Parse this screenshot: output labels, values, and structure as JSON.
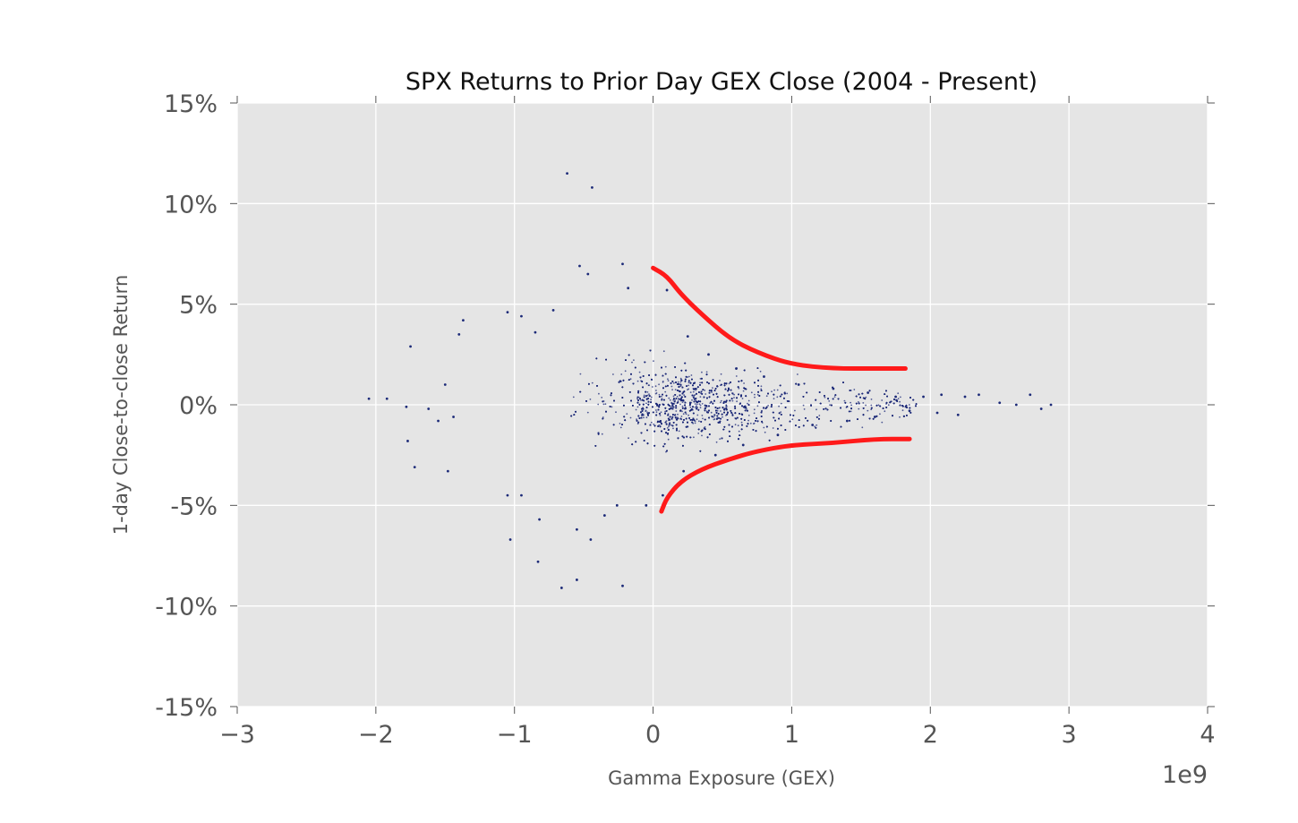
{
  "chart_data": {
    "type": "scatter",
    "title": "SPX Returns to Prior Day GEX Close (2004 - Present)",
    "xlabel": "Gamma Exposure (GEX)",
    "ylabel": "1-day Close-to-close Return",
    "x_offset_label": "1e9",
    "xlim": [
      -3,
      4
    ],
    "ylim": [
      -0.15,
      0.15
    ],
    "x_ticks": [
      -3,
      -2,
      -1,
      0,
      1,
      2,
      3,
      4
    ],
    "x_tick_labels": [
      "−3",
      "−2",
      "−1",
      "0",
      "1",
      "2",
      "3",
      "4"
    ],
    "y_ticks": [
      0.15,
      0.1,
      0.05,
      0,
      -0.05,
      -0.1,
      -0.15
    ],
    "y_tick_labels": [
      "15%",
      "10%",
      "5%",
      "0%",
      "-5%",
      "-10%",
      "-15%"
    ],
    "grid": true,
    "colors": {
      "plot_bg": "#e5e5e5",
      "grid": "#ffffff",
      "points": "#1c2a78",
      "annotation": "#ff1a1a"
    },
    "series": [
      {
        "points": [
          [
            -0.62,
            0.115
          ],
          [
            -0.44,
            0.108
          ],
          [
            -0.53,
            0.069
          ],
          [
            -0.22,
            0.07
          ],
          [
            -0.47,
            0.065
          ],
          [
            -0.18,
            0.058
          ],
          [
            0.1,
            0.057
          ],
          [
            -0.72,
            0.047
          ],
          [
            -0.95,
            0.044
          ],
          [
            -1.05,
            0.046
          ],
          [
            -1.37,
            0.042
          ],
          [
            -0.85,
            0.036
          ],
          [
            0.25,
            0.034
          ],
          [
            -1.4,
            0.035
          ],
          [
            -1.75,
            0.029
          ],
          [
            -2.05,
            0.003
          ],
          [
            -1.92,
            0.003
          ],
          [
            -1.78,
            -0.001
          ],
          [
            -1.62,
            -0.002
          ],
          [
            -1.5,
            0.01
          ],
          [
            -1.44,
            -0.006
          ],
          [
            -1.55,
            -0.008
          ],
          [
            -1.77,
            -0.018
          ],
          [
            -1.72,
            -0.031
          ],
          [
            -1.48,
            -0.033
          ],
          [
            -1.05,
            -0.045
          ],
          [
            -0.95,
            -0.045
          ],
          [
            -0.82,
            -0.057
          ],
          [
            -1.03,
            -0.067
          ],
          [
            -0.83,
            -0.078
          ],
          [
            -0.55,
            -0.087
          ],
          [
            -0.66,
            -0.091
          ],
          [
            -0.22,
            -0.09
          ],
          [
            -0.45,
            -0.067
          ],
          [
            -0.55,
            -0.062
          ],
          [
            -0.35,
            -0.055
          ],
          [
            -0.26,
            -0.05
          ],
          [
            -0.05,
            -0.05
          ],
          [
            0.07,
            -0.045
          ],
          [
            0.22,
            -0.033
          ],
          [
            0.4,
            0.025
          ],
          [
            0.6,
            0.018
          ],
          [
            0.8,
            0.014
          ],
          [
            1.05,
            0.01
          ],
          [
            1.3,
            0.008
          ],
          [
            1.55,
            0.006
          ],
          [
            1.75,
            0.004
          ],
          [
            1.95,
            0.004
          ],
          [
            2.08,
            0.005
          ],
          [
            2.25,
            0.004
          ],
          [
            2.35,
            0.005
          ],
          [
            2.5,
            0.001
          ],
          [
            2.62,
            0.0
          ],
          [
            2.72,
            0.005
          ],
          [
            2.8,
            -0.002
          ],
          [
            2.87,
            0.0
          ],
          [
            2.2,
            -0.005
          ],
          [
            2.05,
            -0.004
          ],
          [
            1.85,
            -0.003
          ],
          [
            1.6,
            -0.006
          ],
          [
            1.4,
            -0.008
          ],
          [
            1.15,
            -0.01
          ],
          [
            0.9,
            -0.015
          ],
          [
            0.65,
            -0.02
          ],
          [
            0.45,
            -0.025
          ]
        ],
        "cluster_note": "dense cluster centered at (0, 0)"
      }
    ],
    "annotations": [
      {
        "type": "hand-drawn-curve",
        "label": "upper envelope",
        "points": [
          [
            0.0,
            0.068
          ],
          [
            0.1,
            0.064
          ],
          [
            0.2,
            0.055
          ],
          [
            0.35,
            0.045
          ],
          [
            0.55,
            0.033
          ],
          [
            0.75,
            0.026
          ],
          [
            1.0,
            0.02
          ],
          [
            1.3,
            0.018
          ],
          [
            1.6,
            0.018
          ],
          [
            1.82,
            0.018
          ]
        ]
      },
      {
        "type": "hand-drawn-curve",
        "label": "lower envelope",
        "points": [
          [
            0.06,
            -0.053
          ],
          [
            0.1,
            -0.046
          ],
          [
            0.2,
            -0.038
          ],
          [
            0.35,
            -0.032
          ],
          [
            0.55,
            -0.027
          ],
          [
            0.75,
            -0.023
          ],
          [
            1.0,
            -0.02
          ],
          [
            1.3,
            -0.019
          ],
          [
            1.6,
            -0.017
          ],
          [
            1.85,
            -0.017
          ]
        ]
      }
    ]
  }
}
